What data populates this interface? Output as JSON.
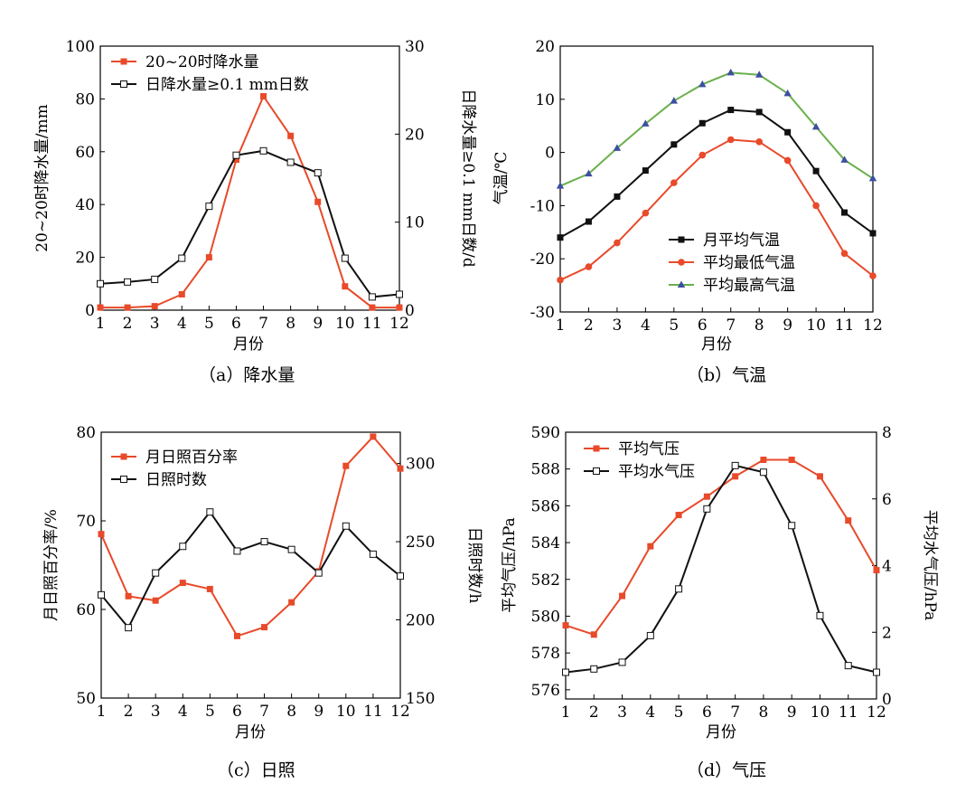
{
  "chart_data": [
    {
      "id": "a",
      "type": "line",
      "caption": "（a）降水量",
      "xlabel": "月份",
      "ylabel": "20~20时降水量/mm",
      "y2label": "日降水量≥0.1 mm日数/d",
      "categories": [
        "1",
        "2",
        "3",
        "4",
        "5",
        "6",
        "7",
        "8",
        "9",
        "10",
        "11",
        "12"
      ],
      "ylim": [
        0,
        100
      ],
      "yticks": [
        0,
        20,
        40,
        60,
        80,
        100
      ],
      "y2lim": [
        0,
        30
      ],
      "y2ticks": [
        0,
        10,
        20,
        30
      ],
      "legend_position": "top-left",
      "series": [
        {
          "name": "20~20时降水量",
          "axis": "left",
          "color": "#e84a2a",
          "marker": "square-filled",
          "values": [
            1,
            1,
            1.5,
            6,
            20,
            57,
            81,
            66,
            41,
            9,
            1,
            1
          ]
        },
        {
          "name": "日降水量≥0.1 mm日数",
          "axis": "right",
          "color": "#111111",
          "marker": "square-open",
          "values": [
            3,
            3.2,
            3.5,
            5.9,
            11.8,
            17.6,
            18.1,
            16.8,
            15.6,
            5.9,
            1.5,
            1.8
          ]
        }
      ]
    },
    {
      "id": "b",
      "type": "line",
      "caption": "（b）气温",
      "xlabel": "月份",
      "ylabel": "气温/℃",
      "categories": [
        "1",
        "2",
        "3",
        "4",
        "5",
        "6",
        "7",
        "8",
        "9",
        "10",
        "11",
        "12"
      ],
      "ylim": [
        -30,
        20
      ],
      "yticks": [
        -30,
        -20,
        -10,
        0,
        10,
        20
      ],
      "legend_position": "bottom-center",
      "series": [
        {
          "name": "月平均气温",
          "axis": "left",
          "color": "#111111",
          "marker": "square-filled",
          "values": [
            -16,
            -13,
            -8.3,
            -3.4,
            1.5,
            5.5,
            8,
            7.6,
            3.8,
            -3.5,
            -11.3,
            -15.2
          ]
        },
        {
          "name": "平均最低气温",
          "axis": "left",
          "color": "#e84a2a",
          "marker": "circle-filled",
          "values": [
            -24,
            -21.5,
            -17,
            -11.4,
            -5.7,
            -0.5,
            2.4,
            2,
            -1.5,
            -10,
            -19,
            -23.2
          ]
        },
        {
          "name": "平均最高气温",
          "axis": "left",
          "color": "#6ab04c",
          "marker": "triangle-blue",
          "values": [
            -6.3,
            -4,
            0.8,
            5.4,
            9.7,
            12.8,
            15,
            14.6,
            11.1,
            4.8,
            -1.4,
            -4.9
          ]
        }
      ]
    },
    {
      "id": "c",
      "type": "line",
      "caption": "（c）日照",
      "xlabel": "月份",
      "ylabel": "月日照百分率/%",
      "y2label": "日照时数/h",
      "categories": [
        "1",
        "2",
        "3",
        "4",
        "5",
        "6",
        "7",
        "8",
        "9",
        "10",
        "11",
        "12"
      ],
      "ylim": [
        50,
        80
      ],
      "yticks": [
        50,
        60,
        70,
        80
      ],
      "y2lim": [
        150,
        320
      ],
      "y2ticks": [
        150,
        200,
        250,
        300
      ],
      "legend_position": "top-left",
      "series": [
        {
          "name": "月日照百分率",
          "axis": "left",
          "color": "#e84a2a",
          "marker": "square-filled",
          "values": [
            68.5,
            61.5,
            61,
            63,
            62.3,
            57,
            58,
            60.8,
            64.3,
            76.2,
            79.5,
            75.9
          ]
        },
        {
          "name": "日照时数",
          "axis": "right",
          "color": "#111111",
          "marker": "square-open",
          "values": [
            216,
            195,
            230,
            247,
            269,
            244,
            250,
            245,
            230,
            260,
            242,
            228
          ]
        }
      ]
    },
    {
      "id": "d",
      "type": "line",
      "caption": "（d）气压",
      "xlabel": "月份",
      "ylabel": "平均气压/hPa",
      "y2label": "平均水气压/hPa",
      "categories": [
        "1",
        "2",
        "3",
        "4",
        "5",
        "6",
        "7",
        "8",
        "9",
        "10",
        "11",
        "12"
      ],
      "ylim": [
        575.5,
        590
      ],
      "yticks": [
        576,
        578,
        580,
        582,
        584,
        586,
        588,
        590
      ],
      "y2lim": [
        0,
        8
      ],
      "y2ticks": [
        0,
        2,
        4,
        6,
        8
      ],
      "legend_position": "top-left",
      "series": [
        {
          "name": "平均气压",
          "axis": "left",
          "color": "#e84a2a",
          "marker": "square-filled",
          "values": [
            579.5,
            579,
            581.1,
            583.8,
            585.5,
            586.5,
            587.6,
            588.5,
            588.5,
            587.6,
            585.2,
            582.5
          ]
        },
        {
          "name": "平均水气压",
          "axis": "right",
          "color": "#111111",
          "marker": "square-open",
          "values": [
            0.8,
            0.9,
            1.1,
            1.9,
            3.3,
            5.7,
            7.0,
            6.8,
            5.2,
            2.5,
            1.0,
            0.8
          ]
        }
      ]
    }
  ]
}
